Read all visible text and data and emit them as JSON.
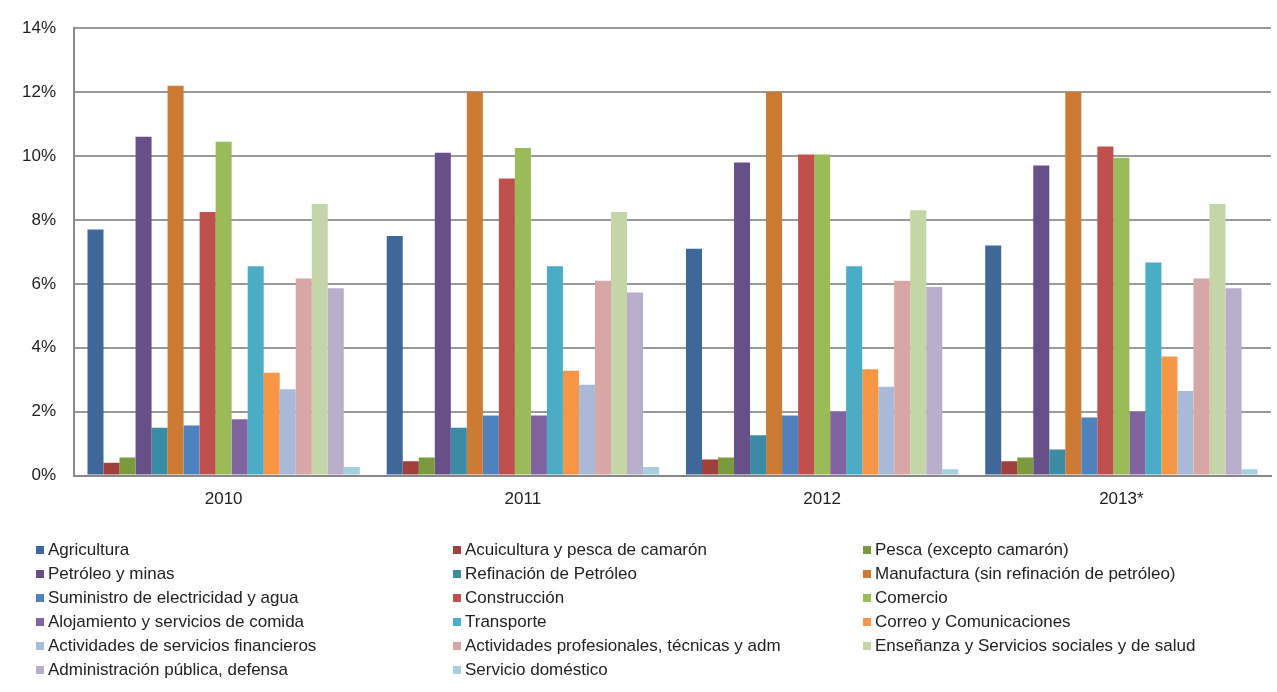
{
  "chart_data": {
    "type": "bar",
    "categories": [
      "2010",
      "2011",
      "2012",
      "2013*"
    ],
    "ylim": [
      0,
      14
    ],
    "yticks": [
      {
        "value": 0,
        "label": "0%"
      },
      {
        "value": 2,
        "label": "2%"
      },
      {
        "value": 4,
        "label": "4%"
      },
      {
        "value": 6,
        "label": "6%"
      },
      {
        "value": 8,
        "label": "8%"
      },
      {
        "value": 10,
        "label": "10%"
      },
      {
        "value": 12,
        "label": "12%"
      },
      {
        "value": 14,
        "label": "14%"
      }
    ],
    "grid": "y",
    "legend": "bottom",
    "series": [
      {
        "name": "Agricultura",
        "color": "#3f679a",
        "values": [
          7.7,
          7.5,
          7.1,
          7.2
        ]
      },
      {
        "name": "Acuicultura y pesca de camarón",
        "color": "#a0403c",
        "values": [
          0.4,
          0.45,
          0.5,
          0.45
        ]
      },
      {
        "name": "Pesca (excepto camarón)",
        "color": "#7b9a3f",
        "values": [
          0.57,
          0.57,
          0.57,
          0.57
        ]
      },
      {
        "name": "Petróleo y minas",
        "color": "#674f88",
        "values": [
          10.6,
          10.1,
          9.8,
          9.7
        ]
      },
      {
        "name": "Refinación de Petróleo",
        "color": "#3a8ba3",
        "values": [
          1.5,
          1.5,
          1.26,
          0.82
        ]
      },
      {
        "name": "Manufactura (sin refinación de petróleo)",
        "color": "#cc7a34",
        "values": [
          12.2,
          12.0,
          12.0,
          12.0
        ]
      },
      {
        "name": "Suministro de electricidad y agua",
        "color": "#4f81bd",
        "values": [
          1.57,
          1.88,
          1.88,
          1.82
        ]
      },
      {
        "name": "Construcción",
        "color": "#c0504d",
        "values": [
          8.25,
          9.3,
          10.05,
          10.3
        ]
      },
      {
        "name": "Comercio",
        "color": "#9bbb59",
        "values": [
          10.45,
          10.25,
          10.05,
          9.95
        ]
      },
      {
        "name": "Alojamiento y servicios de comida",
        "color": "#8064a2",
        "values": [
          1.76,
          1.88,
          2.0,
          2.0
        ]
      },
      {
        "name": "Transporte",
        "color": "#4bacc6",
        "values": [
          6.55,
          6.55,
          6.55,
          6.67
        ]
      },
      {
        "name": "Correo y Comunicaciones",
        "color": "#f79646",
        "values": [
          3.22,
          3.28,
          3.33,
          3.73
        ]
      },
      {
        "name": "Actividades de servicios financieros",
        "color": "#a9bad8",
        "values": [
          2.7,
          2.84,
          2.78,
          2.65
        ]
      },
      {
        "name": "Actividades profesionales, técnicas y adm",
        "color": "#d9a6a6",
        "values": [
          6.17,
          6.1,
          6.1,
          6.17
        ]
      },
      {
        "name": "Enseñanza  y Servicios sociales y de salud",
        "color": "#c4d6a8",
        "values": [
          8.5,
          8.25,
          8.3,
          8.5
        ]
      },
      {
        "name": "Administración pública, defensa",
        "color": "#b8aecb",
        "values": [
          5.86,
          5.73,
          5.9,
          5.86
        ]
      },
      {
        "name": "Servicio doméstico",
        "color": "#a6d0de",
        "values": [
          0.27,
          0.27,
          0.2,
          0.2
        ]
      }
    ]
  }
}
